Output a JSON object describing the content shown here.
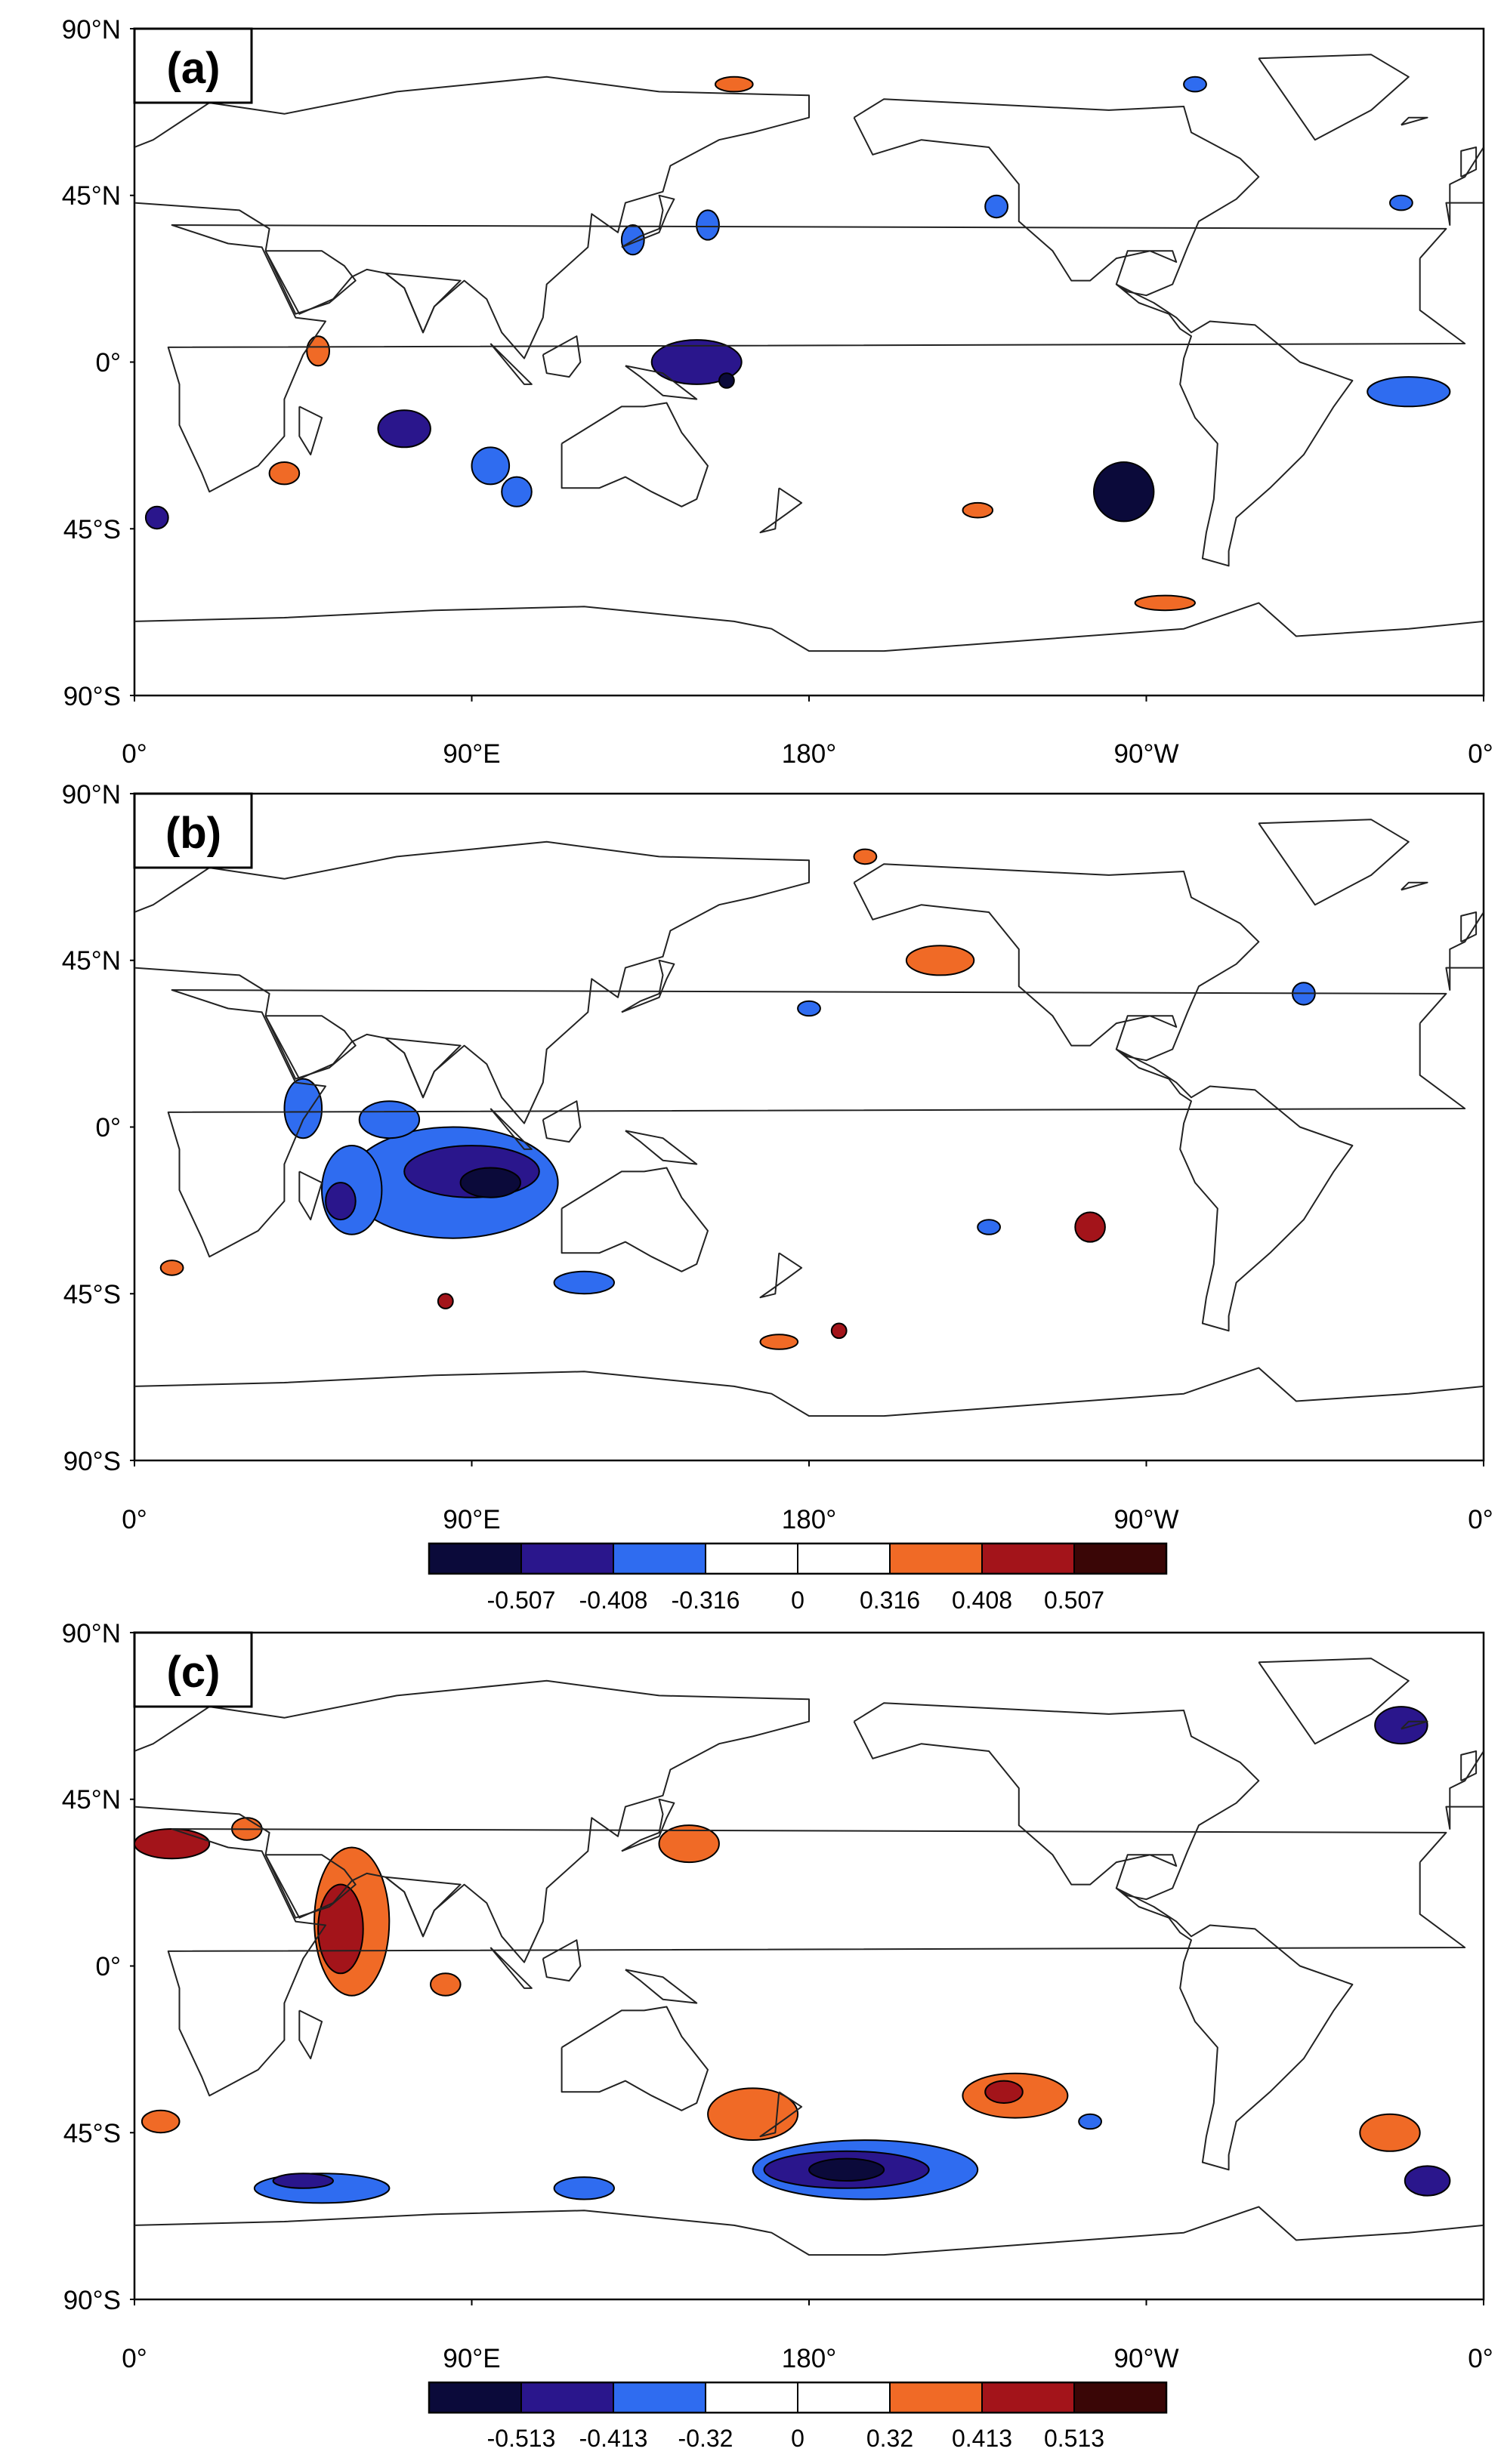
{
  "colors": {
    "neg3": "#0b0a3a",
    "neg2": "#2a168c",
    "neg1": "#2f6cf0",
    "zero": "#ffffff",
    "pos1": "#f06a26",
    "pos2": "#a3141a",
    "pos3": "#3a0606",
    "outline": "#000000"
  },
  "axes": {
    "lat_labels": [
      "90°N",
      "45°N",
      "0°",
      "45°S",
      "90°S"
    ],
    "lon_labels": [
      "0°",
      "90°E",
      "180°",
      "90°W",
      "0°"
    ]
  },
  "panels": [
    {
      "label": "(a)",
      "anomalies": [
        {
          "lon": 72,
          "lat": -18,
          "rx": 7,
          "ry": 5,
          "sign": -1,
          "level": 2
        },
        {
          "lon": 95,
          "lat": -28,
          "rx": 5,
          "ry": 5,
          "sign": -1,
          "level": 1
        },
        {
          "lon": 102,
          "lat": -35,
          "rx": 4,
          "ry": 4,
          "sign": -1,
          "level": 1
        },
        {
          "lon": 150,
          "lat": 0,
          "rx": 12,
          "ry": 6,
          "sign": -1,
          "level": 2
        },
        {
          "lon": 158,
          "lat": -5,
          "rx": 2,
          "ry": 2,
          "sign": -1,
          "level": 3
        },
        {
          "lon": 133,
          "lat": 33,
          "rx": 3,
          "ry": 4,
          "sign": -1,
          "level": 1
        },
        {
          "lon": 153,
          "lat": 37,
          "rx": 3,
          "ry": 4,
          "sign": -1,
          "level": 1
        },
        {
          "lon": 264,
          "lat": -35,
          "rx": 8,
          "ry": 8,
          "sign": -1,
          "level": 3
        },
        {
          "lon": 340,
          "lat": -8,
          "rx": 11,
          "ry": 4,
          "sign": -1,
          "level": 1
        },
        {
          "lon": 6,
          "lat": -42,
          "rx": 3,
          "ry": 3,
          "sign": -1,
          "level": 2
        },
        {
          "lon": 230,
          "lat": 42,
          "rx": 3,
          "ry": 3,
          "sign": -1,
          "level": 1
        },
        {
          "lon": 338,
          "lat": 43,
          "rx": 3,
          "ry": 2,
          "sign": -1,
          "level": 1
        },
        {
          "lon": 283,
          "lat": 75,
          "rx": 3,
          "ry": 2,
          "sign": -1,
          "level": 1
        },
        {
          "lon": 49,
          "lat": 3,
          "rx": 3,
          "ry": 4,
          "sign": 1,
          "level": 1
        },
        {
          "lon": 40,
          "lat": -30,
          "rx": 4,
          "ry": 3,
          "sign": 1,
          "level": 1
        },
        {
          "lon": 225,
          "lat": -40,
          "rx": 4,
          "ry": 2,
          "sign": 1,
          "level": 1
        },
        {
          "lon": 275,
          "lat": -65,
          "rx": 8,
          "ry": 2,
          "sign": 1,
          "level": 1
        },
        {
          "lon": 160,
          "lat": 75,
          "rx": 5,
          "ry": 2,
          "sign": 1,
          "level": 1
        }
      ]
    },
    {
      "label": "(b)",
      "anomalies": [
        {
          "lon": 85,
          "lat": -15,
          "rx": 28,
          "ry": 15,
          "sign": -1,
          "level": 1
        },
        {
          "lon": 90,
          "lat": -12,
          "rx": 18,
          "ry": 7,
          "sign": -1,
          "level": 2
        },
        {
          "lon": 95,
          "lat": -15,
          "rx": 8,
          "ry": 4,
          "sign": -1,
          "level": 3
        },
        {
          "lon": 58,
          "lat": -17,
          "rx": 8,
          "ry": 12,
          "sign": -1,
          "level": 1
        },
        {
          "lon": 55,
          "lat": -20,
          "rx": 4,
          "ry": 5,
          "sign": -1,
          "level": 2
        },
        {
          "lon": 45,
          "lat": 5,
          "rx": 5,
          "ry": 8,
          "sign": -1,
          "level": 1
        },
        {
          "lon": 68,
          "lat": 2,
          "rx": 8,
          "ry": 5,
          "sign": -1,
          "level": 1
        },
        {
          "lon": 120,
          "lat": -42,
          "rx": 8,
          "ry": 3,
          "sign": -1,
          "level": 1
        },
        {
          "lon": 180,
          "lat": 32,
          "rx": 3,
          "ry": 2,
          "sign": -1,
          "level": 1
        },
        {
          "lon": 228,
          "lat": -27,
          "rx": 3,
          "ry": 2,
          "sign": -1,
          "level": 1
        },
        {
          "lon": 312,
          "lat": 36,
          "rx": 3,
          "ry": 3,
          "sign": -1,
          "level": 1
        },
        {
          "lon": 215,
          "lat": 45,
          "rx": 9,
          "ry": 4,
          "sign": 1,
          "level": 1
        },
        {
          "lon": 255,
          "lat": -27,
          "rx": 4,
          "ry": 4,
          "sign": 1,
          "level": 2
        },
        {
          "lon": 195,
          "lat": 73,
          "rx": 3,
          "ry": 2,
          "sign": 1,
          "level": 1
        },
        {
          "lon": 10,
          "lat": -38,
          "rx": 3,
          "ry": 2,
          "sign": 1,
          "level": 1
        },
        {
          "lon": 172,
          "lat": -58,
          "rx": 5,
          "ry": 2,
          "sign": 1,
          "level": 1
        },
        {
          "lon": 188,
          "lat": -55,
          "rx": 2,
          "ry": 2,
          "sign": 1,
          "level": 2
        },
        {
          "lon": 83,
          "lat": -47,
          "rx": 2,
          "ry": 2,
          "sign": 1,
          "level": 2
        }
      ]
    },
    {
      "label": "(c)",
      "anomalies": [
        {
          "lon": 58,
          "lat": 12,
          "rx": 10,
          "ry": 20,
          "sign": 1,
          "level": 1
        },
        {
          "lon": 55,
          "lat": 10,
          "rx": 6,
          "ry": 12,
          "sign": 1,
          "level": 2
        },
        {
          "lon": 10,
          "lat": 33,
          "rx": 10,
          "ry": 4,
          "sign": 1,
          "level": 2
        },
        {
          "lon": 30,
          "lat": 37,
          "rx": 4,
          "ry": 3,
          "sign": 1,
          "level": 1
        },
        {
          "lon": 148,
          "lat": 33,
          "rx": 8,
          "ry": 5,
          "sign": 1,
          "level": 1
        },
        {
          "lon": 165,
          "lat": -40,
          "rx": 12,
          "ry": 7,
          "sign": 1,
          "level": 1
        },
        {
          "lon": 235,
          "lat": -35,
          "rx": 14,
          "ry": 6,
          "sign": 1,
          "level": 1
        },
        {
          "lon": 232,
          "lat": -34,
          "rx": 5,
          "ry": 3,
          "sign": 1,
          "level": 2
        },
        {
          "lon": 335,
          "lat": -45,
          "rx": 8,
          "ry": 5,
          "sign": 1,
          "level": 1
        },
        {
          "lon": 7,
          "lat": -42,
          "rx": 5,
          "ry": 3,
          "sign": 1,
          "level": 1
        },
        {
          "lon": 83,
          "lat": -5,
          "rx": 4,
          "ry": 3,
          "sign": 1,
          "level": 1
        },
        {
          "lon": 195,
          "lat": -55,
          "rx": 30,
          "ry": 8,
          "sign": -1,
          "level": 1
        },
        {
          "lon": 190,
          "lat": -55,
          "rx": 22,
          "ry": 5,
          "sign": -1,
          "level": 2
        },
        {
          "lon": 190,
          "lat": -55,
          "rx": 10,
          "ry": 3,
          "sign": -1,
          "level": 3
        },
        {
          "lon": 50,
          "lat": -60,
          "rx": 18,
          "ry": 4,
          "sign": -1,
          "level": 1
        },
        {
          "lon": 45,
          "lat": -58,
          "rx": 8,
          "ry": 2,
          "sign": -1,
          "level": 2
        },
        {
          "lon": 120,
          "lat": -60,
          "rx": 8,
          "ry": 3,
          "sign": -1,
          "level": 1
        },
        {
          "lon": 338,
          "lat": 65,
          "rx": 7,
          "ry": 5,
          "sign": -1,
          "level": 2
        },
        {
          "lon": 345,
          "lat": -58,
          "rx": 6,
          "ry": 4,
          "sign": -1,
          "level": 2
        },
        {
          "lon": 255,
          "lat": -42,
          "rx": 3,
          "ry": 2,
          "sign": -1,
          "level": 1
        }
      ]
    }
  ],
  "colorbars": [
    {
      "labels": [
        "-0.507",
        "-0.408",
        "-0.316",
        "0",
        "0.316",
        "0.408",
        "0.507"
      ]
    },
    {
      "labels": [
        "-0.513",
        "-0.413",
        "-0.32",
        "0",
        "0.32",
        "0.413",
        "0.513"
      ]
    }
  ]
}
